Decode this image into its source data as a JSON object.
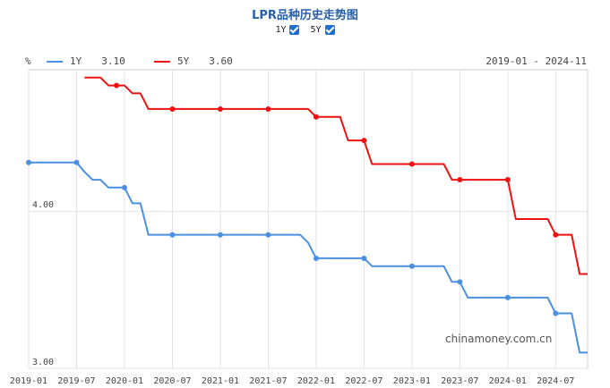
{
  "title": "LPR品种历史走势图",
  "toggles": [
    {
      "label": "1Y",
      "checked": true
    },
    {
      "label": "5Y",
      "checked": true
    }
  ],
  "unit": "%",
  "range": "2019-01 - 2024-11",
  "watermark": "chinamoney.com.cn",
  "legend": [
    {
      "name": "1Y",
      "value": "3.10",
      "color": "#4a90e2"
    },
    {
      "name": "5Y",
      "value": "3.60",
      "color": "#ee1111"
    }
  ],
  "chart_data": {
    "type": "line",
    "ylim": [
      3.0,
      4.9
    ],
    "y_ticks": [
      {
        "v": 4.0,
        "label": "4.00"
      },
      {
        "v": 3.0,
        "label": "3.00"
      }
    ],
    "x_ticks": [
      "2019-01",
      "2019-07",
      "2020-01",
      "2020-07",
      "2021-01",
      "2021-07",
      "2022-01",
      "2022-07",
      "2023-01",
      "2023-07",
      "2024-01",
      "2024-07"
    ],
    "xlim": [
      "2019-01",
      "2024-11"
    ],
    "grid": true,
    "series": [
      {
        "name": "1Y",
        "color": "#4a90e2",
        "values": [
          [
            "2019-01",
            4.31
          ],
          [
            "2019-07",
            4.31
          ],
          [
            "2019-08",
            4.25
          ],
          [
            "2019-09",
            4.2
          ],
          [
            "2019-10",
            4.2
          ],
          [
            "2019-11",
            4.15
          ],
          [
            "2020-01",
            4.15
          ],
          [
            "2020-02",
            4.05
          ],
          [
            "2020-03",
            4.05
          ],
          [
            "2020-04",
            3.85
          ],
          [
            "2020-07",
            3.85
          ],
          [
            "2021-01",
            3.85
          ],
          [
            "2021-07",
            3.85
          ],
          [
            "2021-11",
            3.85
          ],
          [
            "2021-12",
            3.8
          ],
          [
            "2022-01",
            3.7
          ],
          [
            "2022-07",
            3.7
          ],
          [
            "2022-08",
            3.65
          ],
          [
            "2023-01",
            3.65
          ],
          [
            "2023-05",
            3.65
          ],
          [
            "2023-06",
            3.55
          ],
          [
            "2023-07",
            3.55
          ],
          [
            "2023-08",
            3.45
          ],
          [
            "2024-01",
            3.45
          ],
          [
            "2024-06",
            3.45
          ],
          [
            "2024-07",
            3.35
          ],
          [
            "2024-09",
            3.35
          ],
          [
            "2024-10",
            3.1
          ],
          [
            "2024-11",
            3.1
          ]
        ],
        "markers": [
          "2019-01",
          "2019-07",
          "2020-01",
          "2020-07",
          "2021-01",
          "2021-07",
          "2022-01",
          "2022-07",
          "2023-01",
          "2023-07",
          "2024-01",
          "2024-07"
        ]
      },
      {
        "name": "5Y",
        "color": "#ee1111",
        "values": [
          [
            "2019-08",
            4.85
          ],
          [
            "2019-10",
            4.85
          ],
          [
            "2019-11",
            4.8
          ],
          [
            "2020-01",
            4.8
          ],
          [
            "2020-02",
            4.75
          ],
          [
            "2020-03",
            4.75
          ],
          [
            "2020-04",
            4.65
          ],
          [
            "2020-07",
            4.65
          ],
          [
            "2021-01",
            4.65
          ],
          [
            "2021-07",
            4.65
          ],
          [
            "2021-12",
            4.65
          ],
          [
            "2022-01",
            4.6
          ],
          [
            "2022-04",
            4.6
          ],
          [
            "2022-05",
            4.45
          ],
          [
            "2022-07",
            4.45
          ],
          [
            "2022-08",
            4.3
          ],
          [
            "2023-01",
            4.3
          ],
          [
            "2023-05",
            4.3
          ],
          [
            "2023-06",
            4.2
          ],
          [
            "2023-07",
            4.2
          ],
          [
            "2024-01",
            4.2
          ],
          [
            "2024-02",
            3.95
          ],
          [
            "2024-06",
            3.95
          ],
          [
            "2024-07",
            3.85
          ],
          [
            "2024-09",
            3.85
          ],
          [
            "2024-10",
            3.6
          ],
          [
            "2024-11",
            3.6
          ]
        ],
        "markers": [
          "2019-12",
          "2020-07",
          "2021-01",
          "2021-07",
          "2022-01",
          "2022-07",
          "2023-01",
          "2023-07",
          "2024-01",
          "2024-07"
        ]
      }
    ]
  }
}
